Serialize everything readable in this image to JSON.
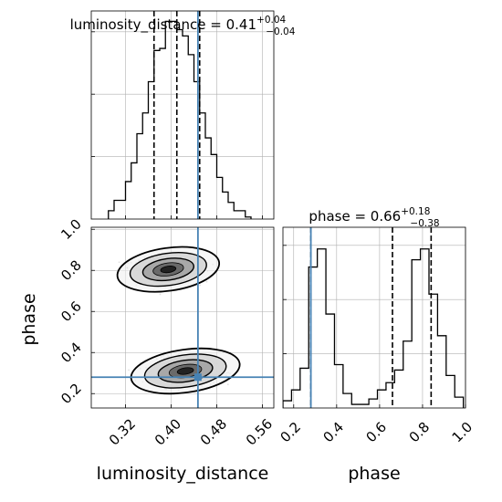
{
  "figure": {
    "type": "corner-plot"
  },
  "colors": {
    "truth": "#4682b4",
    "hist": "#000000",
    "grid": "#b0b0b0"
  },
  "chart_data": [
    {
      "type": "bar",
      "panel": "luminosity_distance-1d",
      "title": {
        "prefix": "luminosity_distance = 0.41",
        "sup": "+0.04",
        "sub": "−0.04"
      },
      "xlim": [
        0.26,
        0.58
      ],
      "ylim": [
        0,
        1.0
      ],
      "bin_edges": [
        0.29,
        0.3,
        0.31,
        0.32,
        0.33,
        0.34,
        0.35,
        0.36,
        0.37,
        0.38,
        0.39,
        0.4,
        0.41,
        0.42,
        0.43,
        0.44,
        0.45,
        0.46,
        0.47,
        0.48,
        0.49,
        0.5,
        0.51,
        0.52,
        0.53,
        0.54
      ],
      "counts": [
        0.04,
        0.09,
        0.09,
        0.18,
        0.27,
        0.41,
        0.51,
        0.66,
        0.81,
        0.82,
        0.95,
        0.95,
        0.91,
        0.88,
        0.79,
        0.66,
        0.51,
        0.39,
        0.31,
        0.2,
        0.13,
        0.08,
        0.04,
        0.04,
        0.01
      ],
      "quantiles": [
        0.37,
        0.41,
        0.45
      ],
      "truth": 0.447,
      "grid": true
    },
    {
      "type": "bar",
      "panel": "phase-1d",
      "title": {
        "prefix": "phase = 0.66",
        "sup": "+0.18",
        "sub": "−0.38"
      },
      "xlim": [
        0.15,
        1.0
      ],
      "ylim": [
        0,
        1.0
      ],
      "bin_edges": [
        0.15,
        0.19,
        0.23,
        0.27,
        0.31,
        0.35,
        0.39,
        0.43,
        0.47,
        0.51,
        0.55,
        0.59,
        0.63,
        0.67,
        0.71,
        0.75,
        0.79,
        0.83,
        0.87,
        0.91,
        0.95,
        0.99
      ],
      "counts": [
        0.04,
        0.1,
        0.22,
        0.78,
        0.88,
        0.52,
        0.24,
        0.08,
        0.02,
        0.02,
        0.05,
        0.1,
        0.14,
        0.21,
        0.37,
        0.82,
        0.88,
        0.63,
        0.4,
        0.18,
        0.06
      ],
      "quantiles": [
        0.28,
        0.66,
        0.84
      ],
      "truth": 0.28,
      "xticks": [
        0.2,
        0.4,
        0.6,
        0.8,
        1.0
      ],
      "xticklabels": [
        "0.2",
        "0.4",
        "0.6",
        "0.8",
        "1.0"
      ],
      "xlabel": "phase",
      "grid": true
    },
    {
      "type": "scatter",
      "panel": "2d-density",
      "xlim": [
        0.26,
        0.58
      ],
      "ylim": [
        0.13,
        1.01
      ],
      "xticks": [
        0.32,
        0.4,
        0.48,
        0.56
      ],
      "xticklabels": [
        "0.32",
        "0.40",
        "0.48",
        "0.56"
      ],
      "yticks": [
        0.2,
        0.4,
        0.6,
        0.8,
        1.0
      ],
      "yticklabels": [
        "0.2",
        "0.4",
        "0.6",
        "0.8",
        "1.0"
      ],
      "xlabel": "luminosity_distance",
      "ylabel": "phase",
      "modes": [
        {
          "center": [
            0.395,
            0.805
          ],
          "spread": [
            0.045,
            0.055
          ]
        },
        {
          "center": [
            0.425,
            0.31
          ],
          "spread": [
            0.048,
            0.055
          ]
        }
      ],
      "truth": [
        0.447,
        0.28
      ],
      "grid": true
    }
  ]
}
